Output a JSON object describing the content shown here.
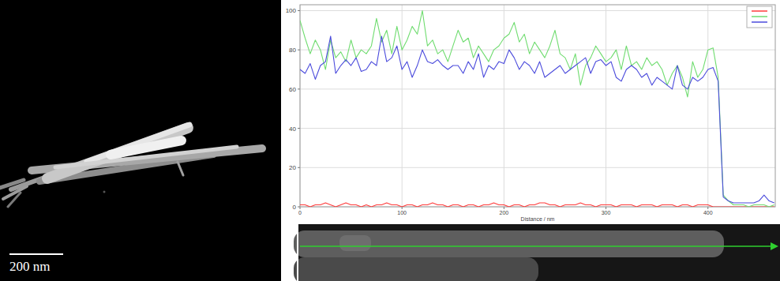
{
  "chart_data": {
    "type": "line",
    "x_label": "Distance / nm",
    "xlim": [
      0,
      466
    ],
    "ylim": [
      0,
      103
    ],
    "xticks": [
      0,
      100,
      200,
      300,
      400
    ],
    "yticks": [
      0,
      20,
      40,
      60,
      80,
      100
    ],
    "grid": true,
    "legend": "top-right",
    "x": [
      0,
      5,
      10,
      15,
      20,
      25,
      30,
      35,
      40,
      45,
      50,
      55,
      60,
      65,
      70,
      75,
      80,
      85,
      90,
      95,
      100,
      105,
      110,
      115,
      120,
      125,
      130,
      135,
      140,
      145,
      150,
      155,
      160,
      165,
      170,
      175,
      180,
      185,
      190,
      195,
      200,
      205,
      210,
      215,
      220,
      225,
      230,
      235,
      240,
      245,
      250,
      255,
      260,
      265,
      270,
      275,
      280,
      285,
      290,
      295,
      300,
      305,
      310,
      315,
      320,
      325,
      330,
      335,
      340,
      345,
      350,
      355,
      360,
      365,
      370,
      375,
      380,
      385,
      390,
      395,
      400,
      405,
      410,
      415,
      420,
      425,
      430,
      435,
      440,
      445,
      450,
      455,
      460,
      465
    ],
    "series": [
      {
        "color": "#ff3b3b",
        "values": [
          1,
          1,
          0,
          1,
          1,
          2,
          1,
          0,
          1,
          2,
          1,
          1,
          0,
          1,
          0,
          1,
          1,
          2,
          1,
          1,
          0,
          1,
          1,
          0,
          1,
          1,
          2,
          1,
          1,
          0,
          1,
          1,
          0,
          1,
          1,
          0,
          1,
          1,
          2,
          1,
          1,
          0,
          1,
          1,
          0,
          1,
          1,
          2,
          2,
          1,
          1,
          0,
          1,
          1,
          1,
          2,
          1,
          1,
          0,
          1,
          1,
          1,
          0,
          1,
          1,
          1,
          0,
          1,
          1,
          1,
          0,
          1,
          1,
          1,
          0,
          1,
          1,
          0,
          1,
          1,
          1,
          0,
          0,
          0,
          0,
          0,
          0,
          0,
          0,
          0,
          0,
          0,
          0,
          0
        ]
      },
      {
        "color": "#6fdc6f",
        "values": [
          95,
          86,
          78,
          85,
          80,
          70,
          85,
          76,
          79,
          74,
          85,
          76,
          80,
          78,
          82,
          96,
          84,
          90,
          78,
          92,
          80,
          85,
          92,
          88,
          100,
          82,
          85,
          78,
          80,
          74,
          82,
          90,
          84,
          86,
          76,
          82,
          78,
          74,
          80,
          82,
          86,
          88,
          94,
          84,
          88,
          78,
          84,
          80,
          76,
          82,
          90,
          78,
          76,
          70,
          78,
          62,
          72,
          76,
          82,
          78,
          74,
          76,
          80,
          70,
          82,
          72,
          74,
          70,
          76,
          72,
          74,
          70,
          62,
          68,
          72,
          66,
          56,
          74,
          66,
          70,
          80,
          81,
          66,
          6,
          3,
          1,
          1,
          1,
          0,
          1,
          1,
          1,
          0,
          1
        ]
      },
      {
        "color": "#4b4bdc",
        "values": [
          70,
          68,
          73,
          65,
          72,
          74,
          87,
          68,
          72,
          75,
          72,
          76,
          69,
          70,
          74,
          72,
          87,
          74,
          76,
          82,
          70,
          74,
          66,
          72,
          80,
          74,
          73,
          75,
          72,
          70,
          72,
          72,
          68,
          74,
          70,
          78,
          66,
          72,
          70,
          74,
          73,
          80,
          76,
          70,
          74,
          72,
          68,
          74,
          66,
          68,
          70,
          72,
          68,
          70,
          72,
          74,
          76,
          68,
          74,
          75,
          72,
          74,
          66,
          64,
          70,
          72,
          70,
          66,
          68,
          62,
          66,
          64,
          62,
          60,
          72,
          62,
          60,
          66,
          64,
          66,
          70,
          71,
          64,
          5,
          3,
          2,
          2,
          2,
          2,
          2,
          3,
          6,
          3,
          2
        ]
      }
    ]
  },
  "image": {
    "scale_bar": "200 nm"
  }
}
